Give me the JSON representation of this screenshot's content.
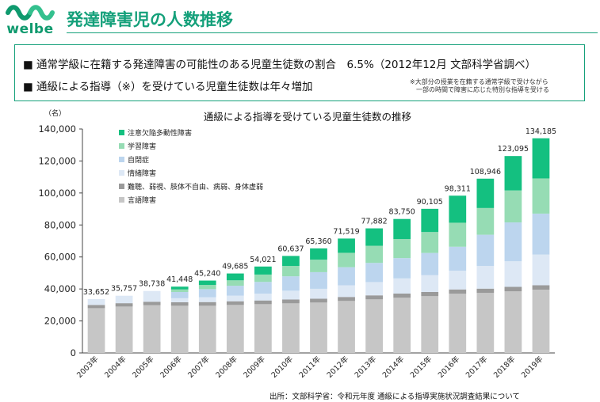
{
  "header": {
    "logo_text": "welbe",
    "title": "発達障害児の人数推移"
  },
  "summary": {
    "line1": "■ 通常学級に在籍する発達障害の可能性のある児童生徒数の割合　6.5%（2012年12月 文部科学省調べ）",
    "line2": "■ 通級による指導（※）を受けている児童生徒数は年々増加",
    "note_line1": "※大部分の授業を在籍する通常学級で受けながら",
    "note_line2": "　一部の時間で障害に応じた特別な指導を受ける"
  },
  "source": "出所：文部科学省：令和元年度 通級による指導実施状況調査結果について",
  "colors": {
    "brand": "#14a07a"
  },
  "chart_data": {
    "type": "bar",
    "stacked": true,
    "title": "通級による指導を受けている児童生徒数の推移",
    "unit_label": "（名）",
    "xlabel": "",
    "ylabel": "",
    "ylim": [
      0,
      140000
    ],
    "yticks": [
      0,
      20000,
      40000,
      60000,
      80000,
      100000,
      120000,
      140000
    ],
    "ytick_labels": [
      "0",
      "20,000",
      "40,000",
      "60,000",
      "80,000",
      "100,000",
      "120,000",
      "140,000"
    ],
    "grid": false,
    "legend_position": "top-left",
    "categories": [
      "2003年",
      "2004年",
      "2005年",
      "2006年",
      "2007年",
      "2008年",
      "2009年",
      "2010年",
      "2011年",
      "2012年",
      "2013年",
      "2014年",
      "2015年",
      "2016年",
      "2017年",
      "2018年",
      "2019年"
    ],
    "totals": [
      33652,
      35757,
      38738,
      41448,
      45240,
      49685,
      54021,
      60637,
      65360,
      71519,
      77882,
      83750,
      90105,
      98311,
      108946,
      123095,
      134185
    ],
    "total_labels": [
      "33,652",
      "35,757",
      "38,738",
      "41,448",
      "45,240",
      "49,685",
      "54,021",
      "60,637",
      "65,360",
      "71,519",
      "77,882",
      "83,750",
      "90,105",
      "98,311",
      "108,946",
      "123,095",
      "134,185"
    ],
    "series": [
      {
        "name": "言語障害",
        "color": "#c6c6c6",
        "values": [
          28000,
          29000,
          29800,
          29500,
          29500,
          30000,
          30500,
          31000,
          31500,
          32500,
          33500,
          34500,
          35500,
          37000,
          37500,
          38500,
          39500
        ]
      },
      {
        "name": "難聴、弱視、肢体不自由、病弱、身体虚弱",
        "color": "#9a9a9a",
        "values": [
          2000,
          2100,
          2200,
          2200,
          2300,
          2300,
          2300,
          2400,
          2400,
          2500,
          2500,
          2600,
          2600,
          2700,
          2700,
          2800,
          2800
        ]
      },
      {
        "name": "情緒障害",
        "color": "#dde8f5",
        "values": [
          3652,
          4657,
          6738,
          2500,
          3000,
          3500,
          4300,
          5500,
          6200,
          7300,
          8300,
          9500,
          10500,
          11700,
          14200,
          16000,
          19200
        ]
      },
      {
        "name": "自閉症",
        "color": "#bcd5ee",
        "values": [
          0,
          0,
          0,
          3900,
          5100,
          6200,
          7300,
          9000,
          10400,
          11300,
          12000,
          12700,
          13900,
          15000,
          19500,
          24300,
          25600
        ]
      },
      {
        "name": "学習障害",
        "color": "#96dcb4",
        "values": [
          0,
          0,
          0,
          1600,
          2600,
          3400,
          4600,
          6500,
          7800,
          9000,
          10700,
          11900,
          13100,
          15000,
          16700,
          20000,
          22000
        ]
      },
      {
        "name": "注意欠陥多動性障害",
        "color": "#14c080",
        "values": [
          0,
          0,
          0,
          1748,
          2740,
          4285,
          5021,
          6237,
          7060,
          8919,
          10882,
          12550,
          14505,
          16911,
          18346,
          21495,
          25085
        ]
      }
    ],
    "legend_order": [
      "注意欠陥多動性障害",
      "学習障害",
      "自閉症",
      "情緒障害",
      "難聴、弱視、肢体不自由、病弱、身体虚弱",
      "言語障害"
    ]
  }
}
